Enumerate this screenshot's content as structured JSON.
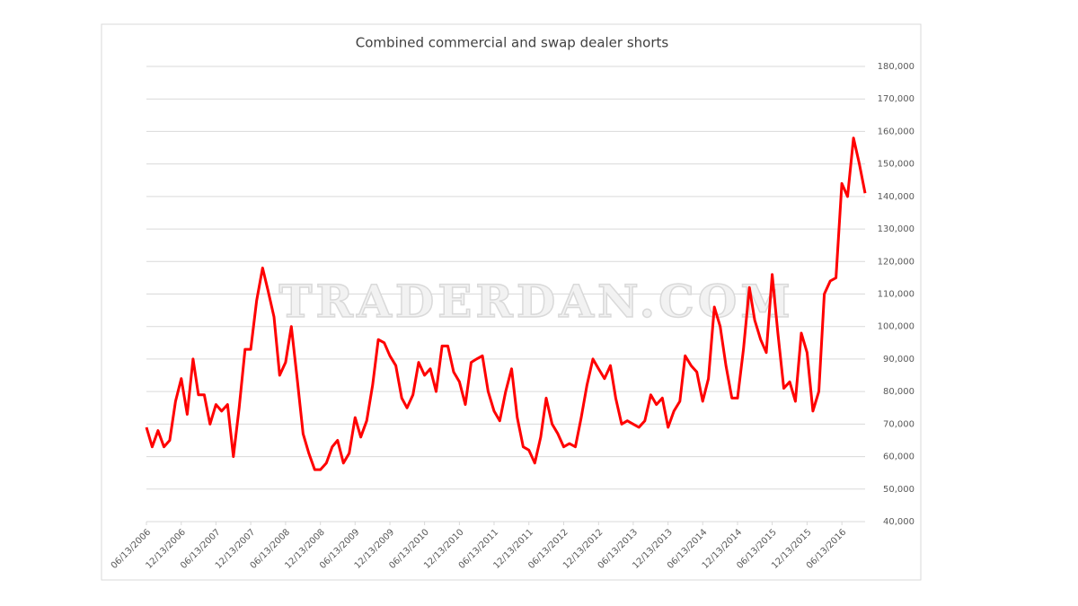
{
  "chart_data": {
    "type": "line",
    "title": "Combined commercial and swap dealer shorts",
    "watermark": "TRADERDAN.COM",
    "x": [
      "2006-06-13",
      "2006-07-13",
      "2006-08-13",
      "2006-09-13",
      "2006-10-13",
      "2006-11-13",
      "2006-12-13",
      "2007-01-13",
      "2007-02-13",
      "2007-03-13",
      "2007-04-13",
      "2007-05-13",
      "2007-06-13",
      "2007-07-13",
      "2007-08-13",
      "2007-09-13",
      "2007-10-13",
      "2007-11-13",
      "2007-12-13",
      "2008-01-13",
      "2008-02-13",
      "2008-03-13",
      "2008-04-13",
      "2008-05-13",
      "2008-06-13",
      "2008-07-13",
      "2008-08-13",
      "2008-09-13",
      "2008-10-13",
      "2008-11-13",
      "2008-12-13",
      "2009-01-13",
      "2009-02-13",
      "2009-03-13",
      "2009-04-13",
      "2009-05-13",
      "2009-06-13",
      "2009-07-13",
      "2009-08-13",
      "2009-09-13",
      "2009-10-13",
      "2009-11-13",
      "2009-12-13",
      "2010-01-13",
      "2010-02-13",
      "2010-03-13",
      "2010-04-13",
      "2010-05-13",
      "2010-06-13",
      "2010-07-13",
      "2010-08-13",
      "2010-09-13",
      "2010-10-13",
      "2010-11-13",
      "2010-12-13",
      "2011-01-13",
      "2011-02-13",
      "2011-03-13",
      "2011-04-13",
      "2011-05-13",
      "2011-06-13",
      "2011-07-13",
      "2011-08-13",
      "2011-09-13",
      "2011-10-13",
      "2011-11-13",
      "2011-12-13",
      "2012-01-13",
      "2012-02-13",
      "2012-03-13",
      "2012-04-13",
      "2012-05-13",
      "2012-06-13",
      "2012-07-13",
      "2012-08-13",
      "2012-09-13",
      "2012-10-13",
      "2012-11-13",
      "2012-12-13",
      "2013-01-13",
      "2013-02-13",
      "2013-03-13",
      "2013-04-13",
      "2013-05-13",
      "2013-06-13",
      "2013-07-13",
      "2013-08-13",
      "2013-09-13",
      "2013-10-13",
      "2013-11-13",
      "2013-12-13",
      "2014-01-13",
      "2014-02-13",
      "2014-03-13",
      "2014-04-13",
      "2014-05-13",
      "2014-06-13",
      "2014-07-13",
      "2014-08-13",
      "2014-09-13",
      "2014-10-13",
      "2014-11-13",
      "2014-12-13",
      "2015-01-13",
      "2015-02-13",
      "2015-03-13",
      "2015-04-13",
      "2015-05-13",
      "2015-06-13",
      "2015-07-13",
      "2015-08-13",
      "2015-09-13",
      "2015-10-13",
      "2015-11-13",
      "2015-12-13",
      "2016-01-13",
      "2016-02-13",
      "2016-03-13",
      "2016-04-13",
      "2016-05-13",
      "2016-06-13",
      "2016-07-13",
      "2016-08-13",
      "2016-09-13",
      "2016-10-13"
    ],
    "series": [
      {
        "color": "#ff0000",
        "values": [
          69000,
          63000,
          68000,
          63000,
          65000,
          77000,
          84000,
          73000,
          90000,
          79000,
          79000,
          70000,
          76000,
          74000,
          76000,
          60000,
          75000,
          93000,
          93000,
          108000,
          118000,
          111000,
          103000,
          85000,
          89000,
          100000,
          84000,
          67000,
          61000,
          56000,
          56000,
          58000,
          63000,
          65000,
          58000,
          61000,
          72000,
          66000,
          71000,
          82000,
          96000,
          95000,
          91000,
          88000,
          78000,
          75000,
          79000,
          89000,
          85000,
          87000,
          80000,
          94000,
          94000,
          86000,
          83000,
          76000,
          89000,
          90000,
          91000,
          80000,
          74000,
          71000,
          80000,
          87000,
          72000,
          63000,
          62000,
          58000,
          66000,
          78000,
          70000,
          67000,
          63000,
          64000,
          63000,
          72000,
          82000,
          90000,
          87000,
          84000,
          88000,
          78000,
          70000,
          71000,
          70000,
          69000,
          71000,
          79000,
          76000,
          78000,
          69000,
          74000,
          77000,
          91000,
          88000,
          86000,
          77000,
          84000,
          106000,
          100000,
          88000,
          78000,
          78000,
          93000,
          112000,
          102000,
          96000,
          92000,
          116000,
          98000,
          81000,
          83000,
          77000,
          98000,
          92000,
          74000,
          80000,
          110000,
          114000,
          115000,
          144000,
          140000,
          158000,
          150000,
          141000
        ]
      }
    ],
    "xlim": [
      "2006-06-13",
      "2016-10-13"
    ],
    "xticks": [
      {
        "value": "2006-06-13",
        "label": "06/13/2006"
      },
      {
        "value": "2006-12-13",
        "label": "12/13/2006"
      },
      {
        "value": "2007-06-13",
        "label": "06/13/2007"
      },
      {
        "value": "2007-12-13",
        "label": "12/13/2007"
      },
      {
        "value": "2008-06-13",
        "label": "06/13/2008"
      },
      {
        "value": "2008-12-13",
        "label": "12/13/2008"
      },
      {
        "value": "2009-06-13",
        "label": "06/13/2009"
      },
      {
        "value": "2009-12-13",
        "label": "12/13/2009"
      },
      {
        "value": "2010-06-13",
        "label": "06/13/2010"
      },
      {
        "value": "2010-12-13",
        "label": "12/13/2010"
      },
      {
        "value": "2011-06-13",
        "label": "06/13/2011"
      },
      {
        "value": "2011-12-13",
        "label": "12/13/2011"
      },
      {
        "value": "2012-06-13",
        "label": "06/13/2012"
      },
      {
        "value": "2012-12-13",
        "label": "12/13/2012"
      },
      {
        "value": "2013-06-13",
        "label": "06/13/2013"
      },
      {
        "value": "2013-12-13",
        "label": "12/13/2013"
      },
      {
        "value": "2014-06-13",
        "label": "06/13/2014"
      },
      {
        "value": "2014-12-13",
        "label": "12/13/2014"
      },
      {
        "value": "2015-06-13",
        "label": "06/13/2015"
      },
      {
        "value": "2015-12-13",
        "label": "12/13/2015"
      },
      {
        "value": "2016-06-13",
        "label": "06/13/2016"
      }
    ],
    "ylim": [
      40000,
      180000
    ],
    "yticks": [
      {
        "value": 40000,
        "label": "40,000"
      },
      {
        "value": 50000,
        "label": "50,000"
      },
      {
        "value": 60000,
        "label": "60,000"
      },
      {
        "value": 70000,
        "label": "70,000"
      },
      {
        "value": 80000,
        "label": "80,000"
      },
      {
        "value": 90000,
        "label": "90,000"
      },
      {
        "value": 100000,
        "label": "100,000"
      },
      {
        "value": 110000,
        "label": "110,000"
      },
      {
        "value": 120000,
        "label": "120,000"
      },
      {
        "value": 130000,
        "label": "130,000"
      },
      {
        "value": 140000,
        "label": "140,000"
      },
      {
        "value": 150000,
        "label": "150,000"
      },
      {
        "value": 160000,
        "label": "160,000"
      },
      {
        "value": 170000,
        "label": "170,000"
      },
      {
        "value": 180000,
        "label": "180,000"
      }
    ],
    "grid": true
  }
}
